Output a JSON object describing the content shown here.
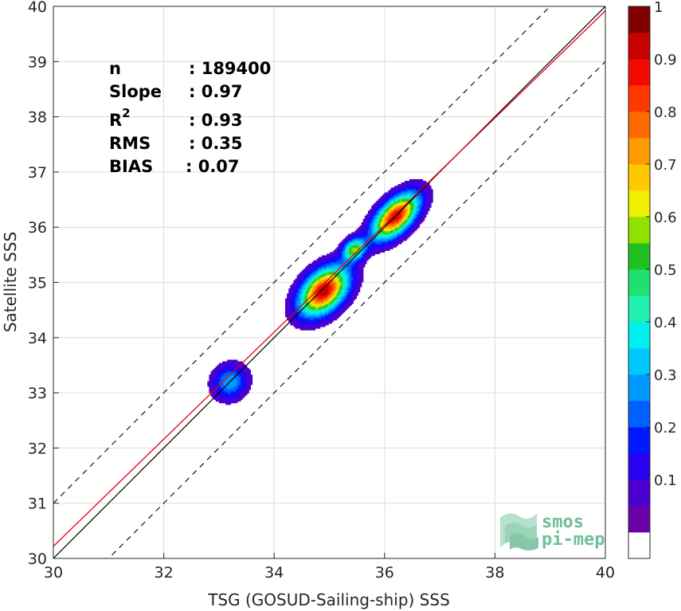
{
  "chart_data": {
    "type": "heatmap",
    "title": "",
    "xlabel": "TSG (GOSUD-Sailing-ship) SSS",
    "ylabel": "Satellite SSS",
    "xlim": [
      30,
      40
    ],
    "ylim": [
      30,
      40
    ],
    "x_ticks": [
      "30",
      "32",
      "34",
      "36",
      "38",
      "40"
    ],
    "y_ticks": [
      "30",
      "31",
      "32",
      "33",
      "34",
      "35",
      "36",
      "37",
      "38",
      "39",
      "40"
    ],
    "grid": true,
    "stats": {
      "n_label": "n",
      "n_value": ": 189400",
      "slope_label": "Slope",
      "slope_value": ": 0.97",
      "r2_label": "R",
      "r2_sup": "2",
      "r2_value": ": 0.93",
      "rms_label": "RMS",
      "rms_value": ": 0.35",
      "bias_label": "BIAS",
      "bias_value": ": 0.07"
    },
    "lines": {
      "identity": {
        "slope": 1,
        "intercept": 0,
        "color": "#000000"
      },
      "regression": {
        "slope": 0.97,
        "intercept": 1.12,
        "color": "#e8000b"
      },
      "offset_bounds": {
        "offset": 1.0,
        "style": "dashed",
        "color": "#000000"
      }
    },
    "density_peaks": [
      {
        "x": 33.2,
        "y": 33.2,
        "sx": 0.22,
        "sy": 0.2,
        "amp": 0.3
      },
      {
        "x": 34.9,
        "y": 34.85,
        "sx": 0.35,
        "sy": 0.22,
        "amp": 0.95
      },
      {
        "x": 35.45,
        "y": 35.6,
        "sx": 0.15,
        "sy": 0.12,
        "amp": 0.55
      },
      {
        "x": 36.2,
        "y": 36.2,
        "sx": 0.35,
        "sy": 0.18,
        "amp": 0.92
      }
    ],
    "colorbar": {
      "ticks": [
        "0.1",
        "0.2",
        "0.3",
        "0.4",
        "0.5",
        "0.6",
        "0.7",
        "0.8",
        "0.9",
        "1"
      ],
      "range": [
        0,
        1
      ],
      "levels": 20,
      "colors": [
        "#ffffff",
        "#6a00a8",
        "#4b00d0",
        "#2a00f0",
        "#0018ff",
        "#0060ff",
        "#0099ff",
        "#00c8ff",
        "#00f0f0",
        "#20f0b0",
        "#20e070",
        "#20c020",
        "#90e000",
        "#f0f000",
        "#ffc800",
        "#ff9a00",
        "#ff6a00",
        "#ff3800",
        "#f20a00",
        "#c80000",
        "#800000"
      ]
    }
  },
  "logo": {
    "line1": "smos",
    "line2": "pi-mep"
  }
}
